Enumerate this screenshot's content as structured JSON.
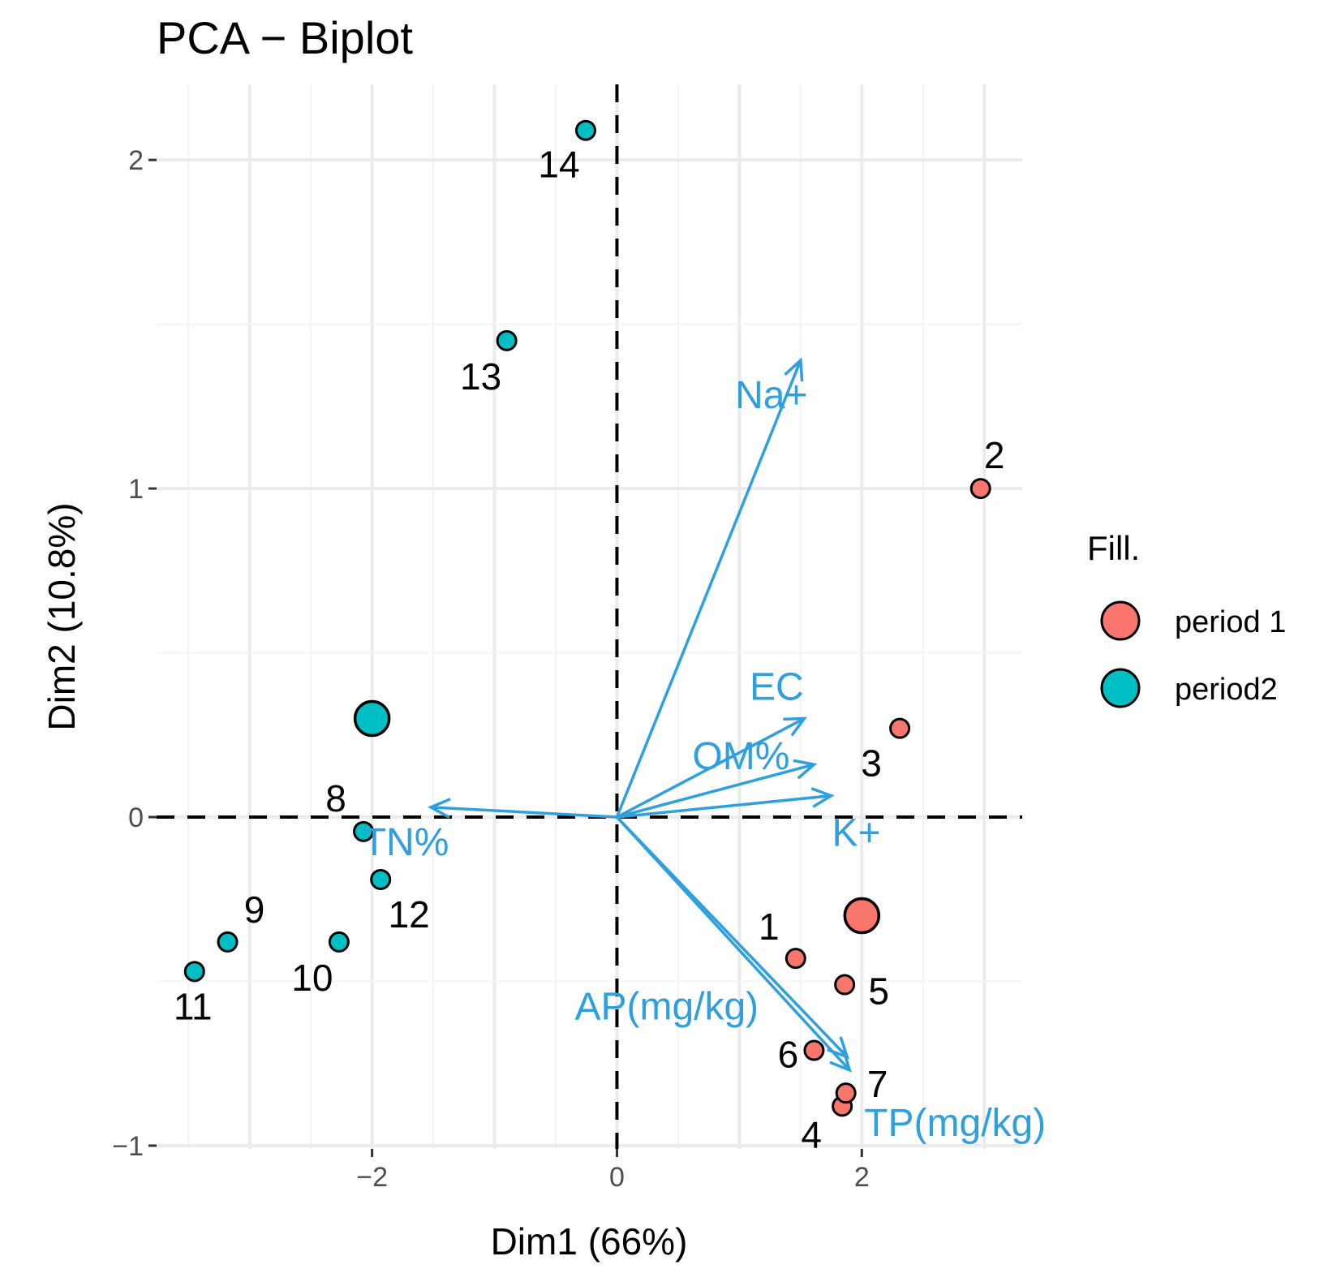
{
  "chart_data": {
    "type": "scatter",
    "subtype": "pca-biplot",
    "title": "PCA − Biplot",
    "xlabel": "Dim1 (66%)",
    "ylabel": "Dim2 (10.8%)",
    "xlim": [
      -3.76,
      3.31
    ],
    "ylim": [
      -1.01,
      2.23
    ],
    "xticks": [
      {
        "value": -2,
        "label": "−2"
      },
      {
        "value": 0,
        "label": "0"
      },
      {
        "value": 2,
        "label": "2"
      }
    ],
    "yticks": [
      {
        "value": -1,
        "label": "−1"
      },
      {
        "value": 0,
        "label": "0"
      },
      {
        "value": 1,
        "label": "1"
      },
      {
        "value": 2,
        "label": "2"
      }
    ],
    "grid": true,
    "legend": {
      "title": "Fill.",
      "placement": "right",
      "entries": [
        {
          "label": "period 1",
          "color": "#F8766D"
        },
        {
          "label": "period2",
          "color": "#00BFC4"
        }
      ]
    },
    "series": [
      {
        "name": "period 1",
        "color": "#F8766D",
        "points": [
          {
            "label": "1",
            "x": 1.46,
            "y": -0.43
          },
          {
            "label": "2",
            "x": 2.97,
            "y": 1.0
          },
          {
            "label": "3",
            "x": 2.31,
            "y": 0.27
          },
          {
            "label": "4",
            "x": 1.84,
            "y": -0.88
          },
          {
            "label": "5",
            "x": 1.86,
            "y": -0.51
          },
          {
            "label": "6",
            "x": 1.61,
            "y": -0.71
          },
          {
            "label": "7",
            "x": 1.87,
            "y": -0.84
          }
        ],
        "centroid": {
          "x": 2.0,
          "y": -0.3
        }
      },
      {
        "name": "period2",
        "color": "#00BFC4",
        "points": [
          {
            "label": "8",
            "x": -2.07,
            "y": -0.044
          },
          {
            "label": "9",
            "x": -3.18,
            "y": -0.38
          },
          {
            "label": "10",
            "x": -2.27,
            "y": -0.38
          },
          {
            "label": "11",
            "x": -3.45,
            "y": -0.47
          },
          {
            "label": "12",
            "x": -1.93,
            "y": -0.19
          },
          {
            "label": "13",
            "x": -0.9,
            "y": 1.45
          },
          {
            "label": "14",
            "x": -0.255,
            "y": 2.09
          }
        ],
        "centroid": {
          "x": -2.0,
          "y": 0.3
        }
      }
    ],
    "variables": {
      "color": "#2E9FDF",
      "arrows": [
        {
          "label": "Na+",
          "x": 1.5,
          "y": 1.39
        },
        {
          "label": "EC",
          "x": 1.53,
          "y": 0.3
        },
        {
          "label": "OM%",
          "x": 1.61,
          "y": 0.16
        },
        {
          "label": "K+",
          "x": 1.75,
          "y": 0.065
        },
        {
          "label": "TN%",
          "x": -1.52,
          "y": 0.03
        },
        {
          "label": "AP(mg/kg)",
          "x": 1.88,
          "y": -0.73
        },
        {
          "label": "TP(mg/kg)",
          "x": 1.9,
          "y": -0.77
        }
      ]
    }
  }
}
